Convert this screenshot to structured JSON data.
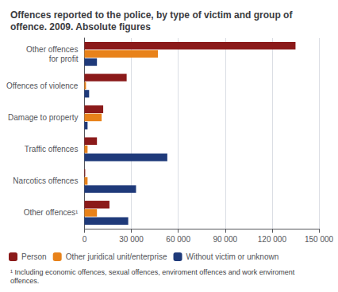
{
  "chart_data": {
    "type": "bar",
    "orientation": "horizontal",
    "title": "Offences reported to the police, by type of victim and group of\noffence. 2009. Absolute figures",
    "footnote": "¹ Including economic offences, sexual offences, enviroment offences and work enviroment\noffences.",
    "categories": [
      "Other offences\nfor profit",
      "Offences of violence",
      "Damage to property",
      "Traffic offences",
      "Narcotics offences",
      "Other offences¹"
    ],
    "series": [
      {
        "name": "Person",
        "color": "#8B1A1A",
        "values": [
          135000,
          27000,
          12000,
          8000,
          500,
          16000
        ]
      },
      {
        "name": "Other juridical unit/enterprise",
        "color": "#E8821A",
        "values": [
          47000,
          1000,
          11000,
          2000,
          2000,
          8000
        ]
      },
      {
        "name": "Without victim or unknown",
        "color": "#1F3A7A",
        "values": [
          8000,
          3000,
          2000,
          53000,
          33000,
          28000
        ]
      }
    ],
    "xlim": [
      0,
      150000
    ],
    "xticks": [
      0,
      {
        "value": 30000,
        "label": "30 000"
      },
      {
        "value": 60000,
        "label": "60 000"
      },
      {
        "value": 90000,
        "label": "90 000"
      },
      {
        "value": 120000,
        "label": "120 000"
      },
      {
        "value": 150000,
        "label": "150 000"
      }
    ],
    "grid": true,
    "legend": "bottom"
  }
}
